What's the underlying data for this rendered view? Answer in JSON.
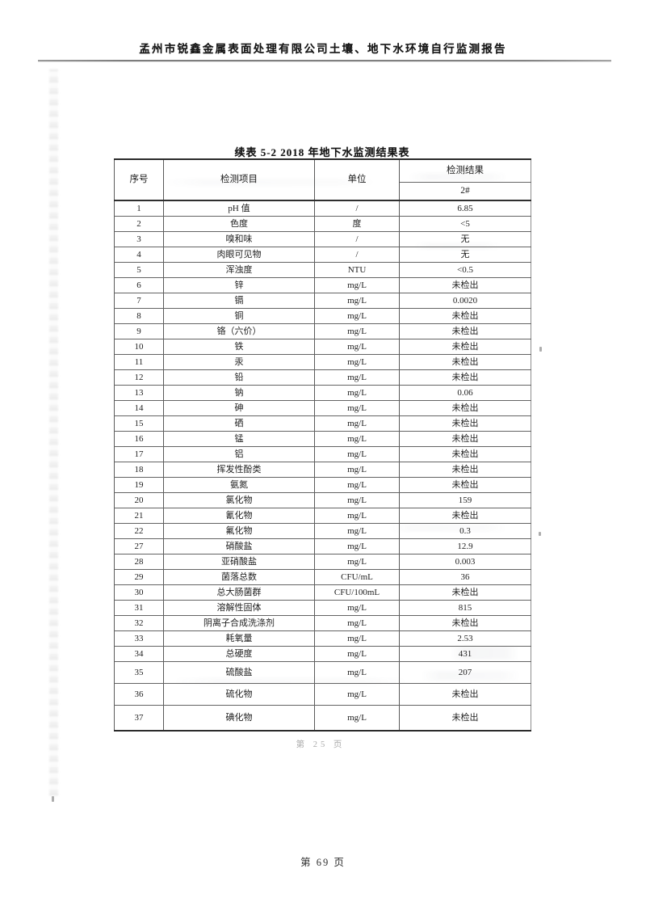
{
  "page": {
    "header_title": "孟州市锐鑫金属表面处理有限公司土壤、地下水环境自行监测报告",
    "inner_page_number": "第 25 页",
    "outer_page_number": "第 69 页"
  },
  "table": {
    "title": "续表 5-2  2018 年地下水监测结果表",
    "columns": [
      "序号",
      "检测项目",
      "单位"
    ],
    "result_header": "检测结果",
    "result_subheader": "2#",
    "rows": [
      {
        "no": "1",
        "item": "pH 值",
        "unit": "/",
        "value": "6.85"
      },
      {
        "no": "2",
        "item": "色度",
        "unit": "度",
        "value": "<5"
      },
      {
        "no": "3",
        "item": "嗅和味",
        "unit": "/",
        "value": "无"
      },
      {
        "no": "4",
        "item": "肉眼可见物",
        "unit": "/",
        "value": "无"
      },
      {
        "no": "5",
        "item": "浑浊度",
        "unit": "NTU",
        "value": "<0.5"
      },
      {
        "no": "6",
        "item": "锌",
        "unit": "mg/L",
        "value": "未检出"
      },
      {
        "no": "7",
        "item": "镉",
        "unit": "mg/L",
        "value": "0.0020"
      },
      {
        "no": "8",
        "item": "铜",
        "unit": "mg/L",
        "value": "未检出"
      },
      {
        "no": "9",
        "item": "铬（六价）",
        "unit": "mg/L",
        "value": "未检出"
      },
      {
        "no": "10",
        "item": "铁",
        "unit": "mg/L",
        "value": "未检出"
      },
      {
        "no": "11",
        "item": "汞",
        "unit": "mg/L",
        "value": "未检出"
      },
      {
        "no": "12",
        "item": "铅",
        "unit": "mg/L",
        "value": "未检出"
      },
      {
        "no": "13",
        "item": "钠",
        "unit": "mg/L",
        "value": "0.06"
      },
      {
        "no": "14",
        "item": "砷",
        "unit": "mg/L",
        "value": "未检出"
      },
      {
        "no": "15",
        "item": "硒",
        "unit": "mg/L",
        "value": "未检出"
      },
      {
        "no": "16",
        "item": "锰",
        "unit": "mg/L",
        "value": "未检出"
      },
      {
        "no": "17",
        "item": "铝",
        "unit": "mg/L",
        "value": "未检出"
      },
      {
        "no": "18",
        "item": "挥发性酚类",
        "unit": "mg/L",
        "value": "未检出"
      },
      {
        "no": "19",
        "item": "氨氮",
        "unit": "mg/L",
        "value": "未检出"
      },
      {
        "no": "20",
        "item": "氯化物",
        "unit": "mg/L",
        "value": "159"
      },
      {
        "no": "21",
        "item": "氰化物",
        "unit": "mg/L",
        "value": "未检出"
      },
      {
        "no": "22",
        "item": "氟化物",
        "unit": "mg/L",
        "value": "0.3"
      },
      {
        "no": "27",
        "item": "硝酸盐",
        "unit": "mg/L",
        "value": "12.9"
      },
      {
        "no": "28",
        "item": "亚硝酸盐",
        "unit": "mg/L",
        "value": "0.003"
      },
      {
        "no": "29",
        "item": "菌落总数",
        "unit": "CFU/mL",
        "value": "36"
      },
      {
        "no": "30",
        "item": "总大肠菌群",
        "unit": "CFU/100mL",
        "value": "未检出"
      },
      {
        "no": "31",
        "item": "溶解性固体",
        "unit": "mg/L",
        "value": "815"
      },
      {
        "no": "32",
        "item": "阴离子合成洗涤剂",
        "unit": "mg/L",
        "value": "未检出"
      },
      {
        "no": "33",
        "item": "耗氧量",
        "unit": "mg/L",
        "value": "2.53"
      },
      {
        "no": "34",
        "item": "总硬度",
        "unit": "mg/L",
        "value": "431"
      },
      {
        "no": "35",
        "item": "硫酸盐",
        "unit": "mg/L",
        "value": "207"
      },
      {
        "no": "36",
        "item": "硫化物",
        "unit": "mg/L",
        "value": "未检出"
      },
      {
        "no": "37",
        "item": "碘化物",
        "unit": "mg/L",
        "value": "未检出"
      }
    ]
  }
}
